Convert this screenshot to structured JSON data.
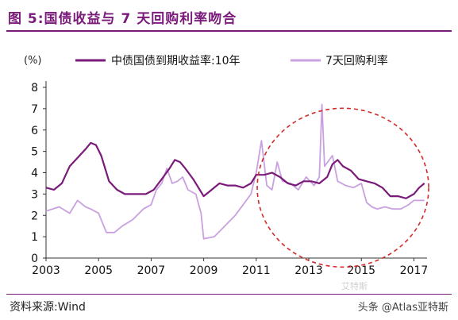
{
  "figure": {
    "label": "图 5:",
    "title": "国债收益与 7 天回购利率吻合"
  },
  "source": "资料来源:Wind",
  "watermark": "头条 @Atlas亚特斯",
  "watermark_logo": "艾特斯",
  "chart_data": {
    "type": "line",
    "ylabel": "(%)",
    "ylim": [
      0,
      8
    ],
    "yticks": [
      0,
      1,
      2,
      3,
      4,
      5,
      6,
      7,
      8
    ],
    "xlim": [
      2003,
      2017.5
    ],
    "xticks": [
      "2003",
      "2005",
      "2007",
      "2009",
      "2011",
      "2013",
      "2015",
      "2017"
    ],
    "grid": false,
    "legend_position": "top",
    "annotation": "dashed red circle around 2011-2017",
    "series": [
      {
        "name": "中债国债到期收益率:10年",
        "color": "#7a1a7a",
        "x": [
          2003.0,
          2003.3,
          2003.6,
          2003.9,
          2004.2,
          2004.5,
          2004.7,
          2004.9,
          2005.1,
          2005.4,
          2005.7,
          2006.0,
          2006.4,
          2006.8,
          2007.1,
          2007.4,
          2007.7,
          2007.9,
          2008.1,
          2008.3,
          2008.6,
          2008.8,
          2009.0,
          2009.3,
          2009.6,
          2009.9,
          2010.2,
          2010.5,
          2010.8,
          2011.0,
          2011.3,
          2011.6,
          2011.9,
          2012.2,
          2012.5,
          2012.8,
          2013.1,
          2013.4,
          2013.7,
          2013.9,
          2014.1,
          2014.3,
          2014.6,
          2014.9,
          2015.2,
          2015.5,
          2015.8,
          2016.1,
          2016.4,
          2016.7,
          2017.0,
          2017.2,
          2017.4
        ],
        "values": [
          3.3,
          3.2,
          3.5,
          4.3,
          4.7,
          5.1,
          5.4,
          5.3,
          4.8,
          3.6,
          3.2,
          3.0,
          3.0,
          3.0,
          3.2,
          3.7,
          4.2,
          4.6,
          4.5,
          4.2,
          3.7,
          3.3,
          2.9,
          3.2,
          3.5,
          3.4,
          3.4,
          3.3,
          3.5,
          3.9,
          3.9,
          4.0,
          3.8,
          3.5,
          3.4,
          3.6,
          3.6,
          3.5,
          3.8,
          4.4,
          4.6,
          4.3,
          4.1,
          3.7,
          3.6,
          3.5,
          3.3,
          2.9,
          2.9,
          2.8,
          3.0,
          3.3,
          3.5
        ]
      },
      {
        "name": "7天回购利率",
        "color": "#c9a0e0",
        "x": [
          2003.0,
          2003.5,
          2003.9,
          2004.2,
          2004.5,
          2004.7,
          2005.0,
          2005.3,
          2005.6,
          2005.9,
          2006.3,
          2006.7,
          2007.0,
          2007.2,
          2007.4,
          2007.6,
          2007.8,
          2008.0,
          2008.2,
          2008.4,
          2008.7,
          2008.9,
          2009.0,
          2009.4,
          2009.8,
          2010.2,
          2010.5,
          2010.8,
          2011.0,
          2011.2,
          2011.4,
          2011.6,
          2011.8,
          2012.0,
          2012.3,
          2012.6,
          2012.9,
          2013.2,
          2013.4,
          2013.5,
          2013.6,
          2013.9,
          2014.1,
          2014.4,
          2014.7,
          2015.0,
          2015.2,
          2015.4,
          2015.6,
          2015.9,
          2016.2,
          2016.5,
          2016.8,
          2017.0,
          2017.2,
          2017.4
        ],
        "values": [
          2.2,
          2.4,
          2.1,
          2.7,
          2.4,
          2.3,
          2.1,
          1.2,
          1.2,
          1.5,
          1.8,
          2.3,
          2.5,
          3.2,
          3.5,
          4.2,
          3.5,
          3.6,
          3.8,
          3.2,
          3.0,
          2.1,
          0.9,
          1.0,
          1.5,
          2.0,
          2.5,
          3.0,
          4.0,
          5.5,
          3.4,
          3.2,
          4.5,
          3.6,
          3.5,
          3.2,
          3.8,
          3.4,
          3.8,
          7.2,
          4.3,
          4.8,
          3.6,
          3.4,
          3.3,
          3.5,
          2.6,
          2.4,
          2.3,
          2.4,
          2.3,
          2.3,
          2.5,
          2.7,
          2.7,
          2.7
        ]
      }
    ]
  }
}
